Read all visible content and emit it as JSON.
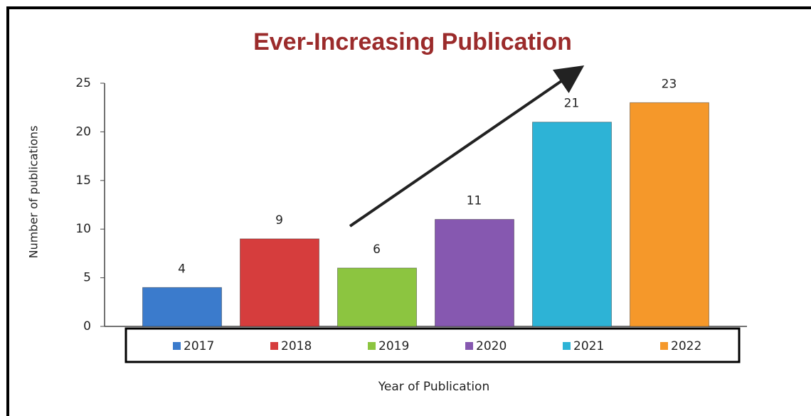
{
  "chart_data": {
    "type": "bar",
    "title": "Ever-Increasing Publication",
    "y_label": "Number of publications",
    "x_label": "Year of Publication",
    "categories": [
      "2017",
      "2018",
      "2019",
      "2020",
      "2021",
      "2022"
    ],
    "values": [
      4,
      9,
      6,
      11,
      21,
      23
    ],
    "colors": [
      "#3b7bcc",
      "#d63d3d",
      "#8cc540",
      "#8658b0",
      "#2db3d6",
      "#f5982a"
    ],
    "ylim": [
      0,
      25
    ],
    "yticks": [
      0,
      5,
      10,
      15,
      20,
      25
    ],
    "grid": false,
    "legend": "bottom"
  }
}
